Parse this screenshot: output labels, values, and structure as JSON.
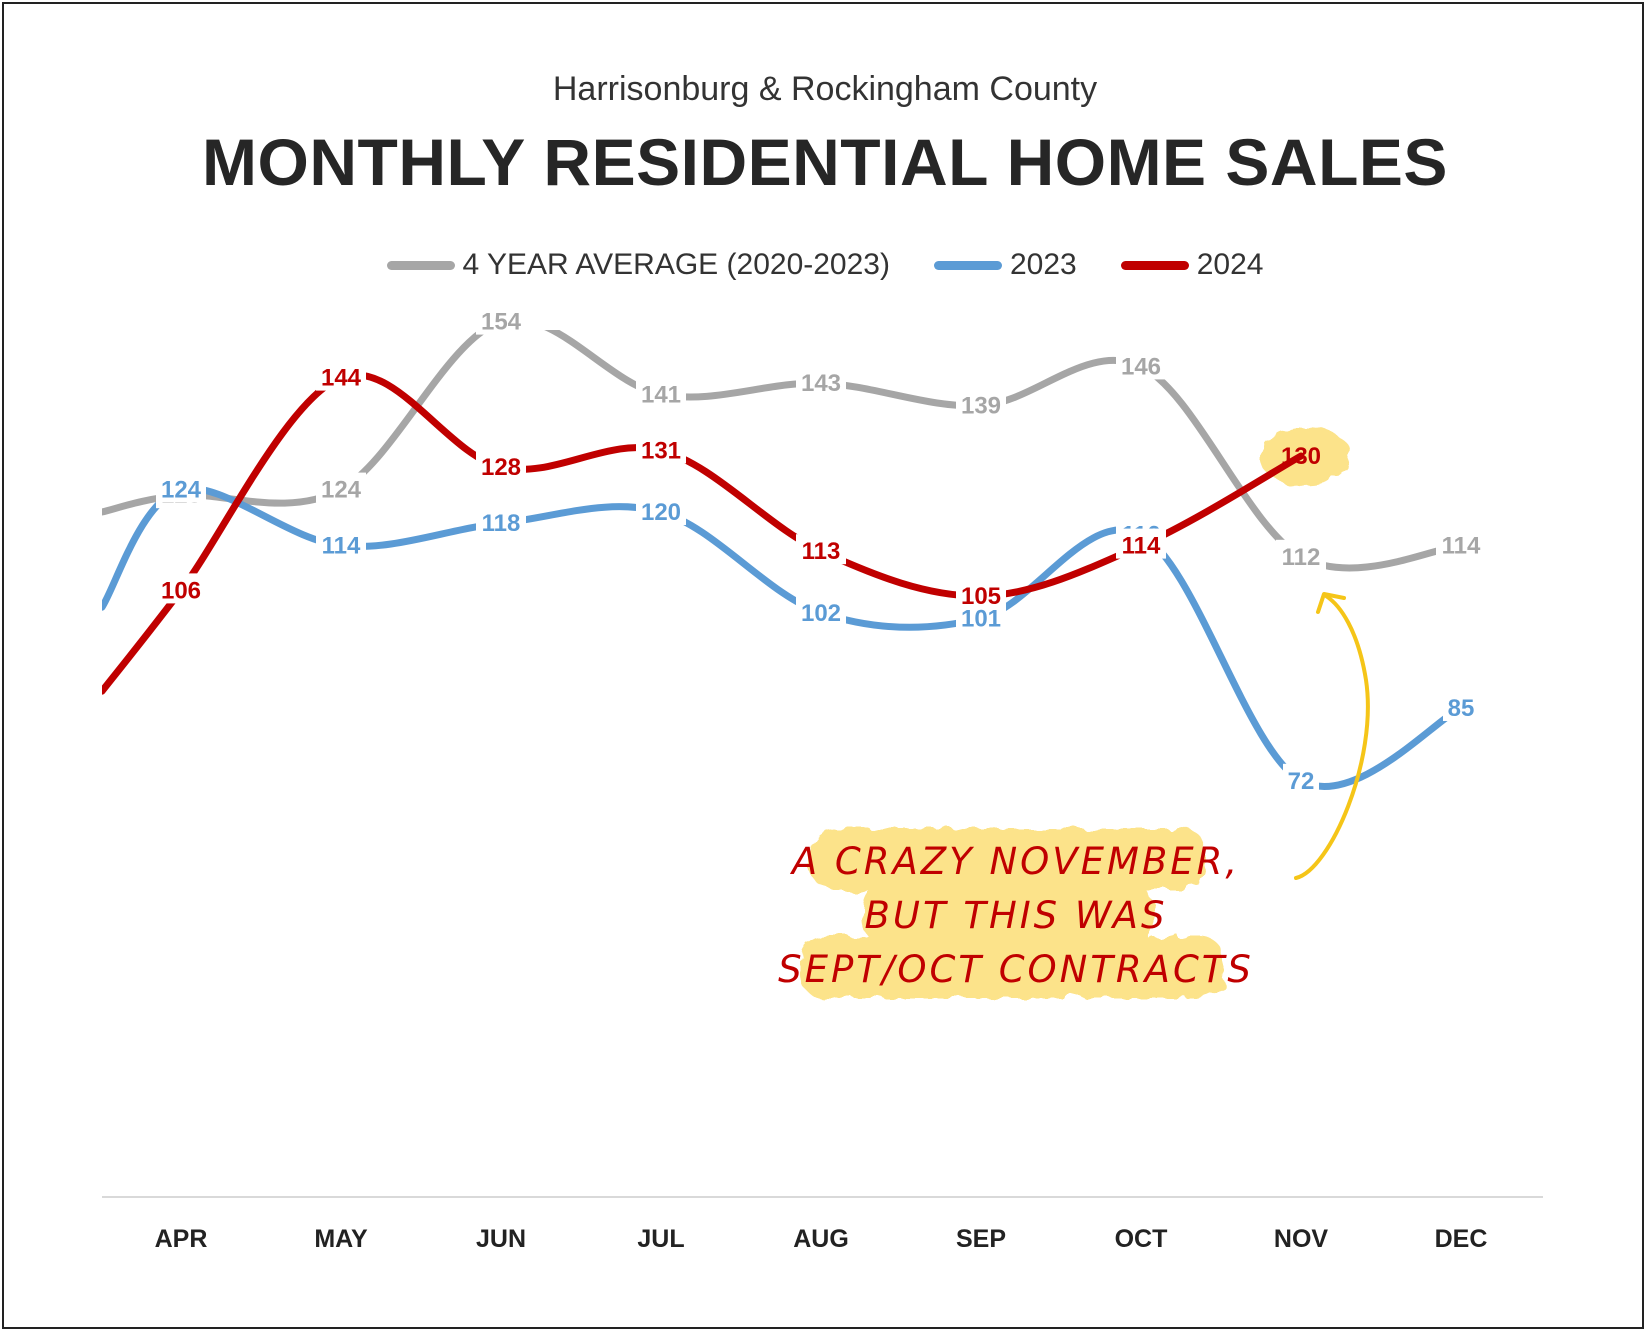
{
  "chart_data": {
    "type": "line",
    "subtitle": "Harrisonburg & Rockingham County",
    "title": "MONTHLY RESIDENTIAL HOME SALES",
    "categories": [
      "APR",
      "MAY",
      "JUN",
      "JUL",
      "AUG",
      "SEP",
      "OCT",
      "NOV",
      "DEC"
    ],
    "series": [
      {
        "name": "4 YEAR AVERAGE (2020-2023)",
        "color": "#a6a6a6",
        "values": [
          123,
          124,
          154,
          141,
          143,
          139,
          146,
          112,
          114
        ]
      },
      {
        "name": "2023",
        "color": "#5b9bd5",
        "values": [
          124,
          114,
          118,
          120,
          102,
          101,
          116,
          72,
          85
        ]
      },
      {
        "name": "2024",
        "color": "#c00000",
        "values": [
          106,
          144,
          128,
          131,
          113,
          105,
          114,
          130,
          null
        ]
      }
    ],
    "legend_position": "top-center",
    "grid": false,
    "annotation": {
      "lines": [
        "A CRAZY NOVEMBER,",
        "BUT THIS WAS",
        "SEPT/OCT CONTRACTS"
      ],
      "highlight_color": "#fce38a",
      "arrow_color": "#f5c518",
      "points_to": "NOV 2024"
    }
  }
}
